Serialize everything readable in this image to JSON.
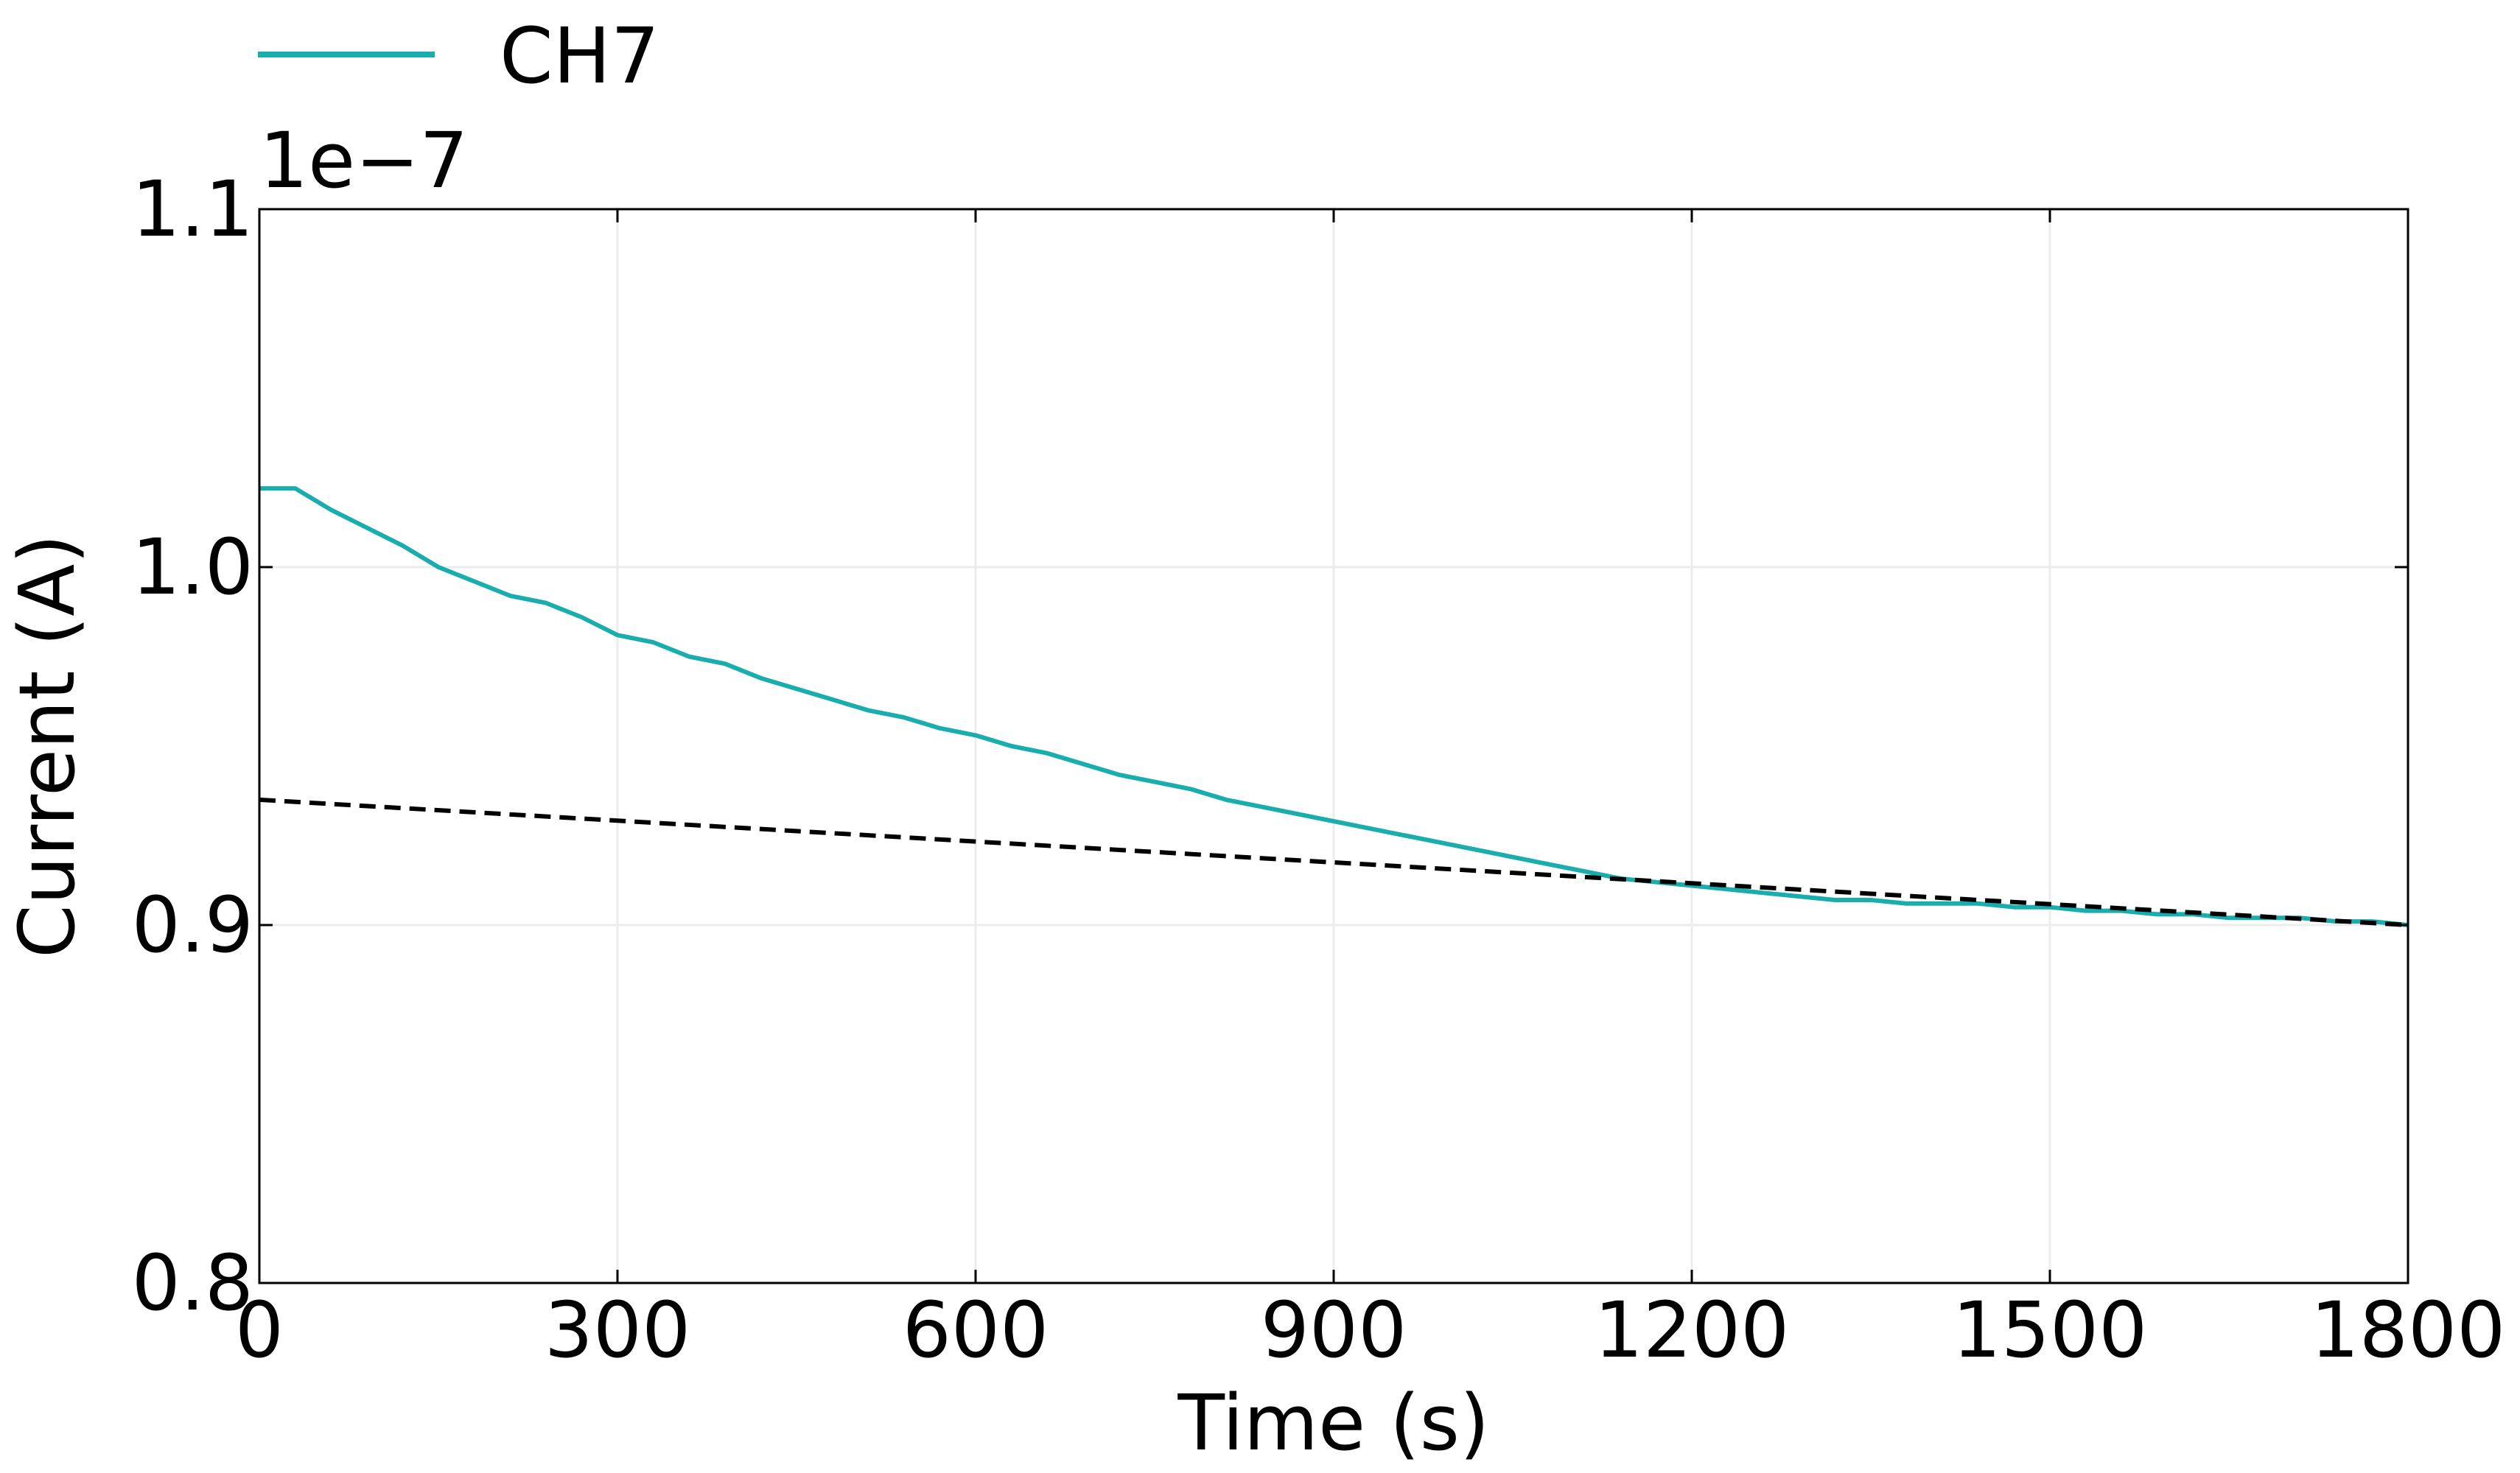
{
  "chart_data": {
    "type": "line",
    "xlabel": "Time (s)",
    "ylabel": "Current (A)",
    "y_offset_label": "1e−7",
    "xlim": [
      0,
      1800
    ],
    "ylim": [
      0.8,
      1.1
    ],
    "x_ticks": [
      0,
      300,
      600,
      900,
      1200,
      1500,
      1800
    ],
    "x_tick_labels": [
      "0",
      "300",
      "600",
      "900",
      "1200",
      "1500",
      "1800"
    ],
    "y_ticks": [
      0.8,
      0.9,
      1.0,
      1.1
    ],
    "y_tick_labels": [
      "0.8",
      "0.9",
      "1.0",
      "1.1"
    ],
    "grid": true,
    "legend_position": "top-left, above plot",
    "series": [
      {
        "name": "CH7",
        "color": "#1aadad",
        "style": "solid",
        "x": [
          0,
          30,
          60,
          90,
          120,
          150,
          180,
          210,
          240,
          270,
          300,
          330,
          360,
          390,
          420,
          450,
          480,
          510,
          540,
          570,
          600,
          630,
          660,
          690,
          720,
          750,
          780,
          810,
          840,
          870,
          900,
          930,
          960,
          990,
          1020,
          1050,
          1080,
          1110,
          1140,
          1170,
          1200,
          1230,
          1260,
          1290,
          1320,
          1350,
          1380,
          1410,
          1440,
          1470,
          1500,
          1530,
          1560,
          1590,
          1620,
          1650,
          1680,
          1710,
          1740,
          1770,
          1800
        ],
        "y": [
          1.022,
          1.022,
          1.016,
          1.011,
          1.006,
          1.0,
          0.996,
          0.992,
          0.99,
          0.986,
          0.981,
          0.979,
          0.975,
          0.973,
          0.969,
          0.966,
          0.963,
          0.96,
          0.958,
          0.955,
          0.953,
          0.95,
          0.948,
          0.945,
          0.942,
          0.94,
          0.938,
          0.935,
          0.933,
          0.931,
          0.929,
          0.927,
          0.925,
          0.923,
          0.921,
          0.919,
          0.917,
          0.915,
          0.913,
          0.912,
          0.911,
          0.91,
          0.909,
          0.908,
          0.907,
          0.907,
          0.906,
          0.906,
          0.906,
          0.905,
          0.905,
          0.904,
          0.904,
          0.903,
          0.903,
          0.902,
          0.902,
          0.902,
          0.901,
          0.901,
          0.9
        ]
      },
      {
        "color": "#000000",
        "style": "dashed",
        "x": [
          0,
          1800
        ],
        "y": [
          0.935,
          0.9
        ]
      }
    ]
  }
}
